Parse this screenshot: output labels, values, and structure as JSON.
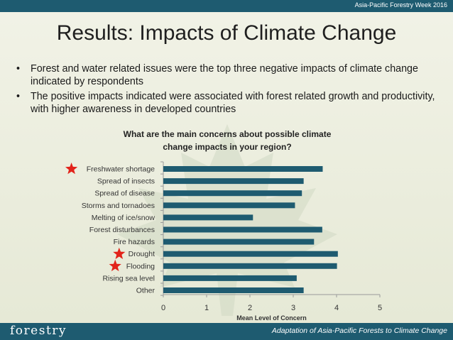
{
  "header": {
    "event": "Asia-Pacific Forestry Week 2016"
  },
  "slide": {
    "title": "Results: Impacts of Climate Change",
    "bullets": [
      "Forest and water related issues were the top three negative impacts of climate change indicated by respondents",
      "The positive impacts indicated were associated with forest related growth and productivity, with higher awareness in developed countries"
    ]
  },
  "footer": {
    "logo": "forestry",
    "caption": "Adaptation of Asia-Pacific Forests to Climate Change"
  },
  "colors": {
    "bar": "#1e5b70",
    "star": "#e2231a",
    "bar_strip": "#1e5b70"
  },
  "chart_data": {
    "type": "bar",
    "orientation": "horizontal",
    "title": "What are the main concerns about possible climate change impacts in your region?",
    "title_lines": [
      "What are the main concerns about possible climate",
      "change impacts in your region?"
    ],
    "xlabel": "Mean Level of Concern",
    "ylabel": "",
    "xlim": [
      0,
      5
    ],
    "xticks": [
      0,
      1,
      2,
      3,
      4,
      5
    ],
    "grid": false,
    "categories": [
      "Freshwater shortage",
      "Spread of insects",
      "Spread of disease",
      "Storms and tornadoes",
      "Melting of ice/snow",
      "Forest disturbances",
      "Fire hazards",
      "Drought",
      "Flooding",
      "Rising sea level",
      "Other"
    ],
    "values": [
      3.68,
      3.24,
      3.2,
      3.04,
      2.07,
      3.67,
      3.48,
      4.03,
      4.01,
      3.08,
      3.24
    ],
    "highlighted": [
      "Freshwater shortage",
      "Drought",
      "Flooding"
    ]
  }
}
